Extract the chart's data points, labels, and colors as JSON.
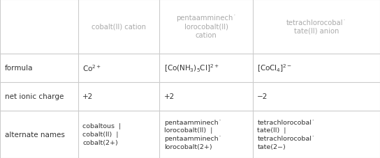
{
  "figsize": [
    5.44,
    2.28
  ],
  "dpi": 100,
  "background_color": "#ffffff",
  "border_color": "#cccccc",
  "header_text_color": "#aaaaaa",
  "cell_text_color": "#333333",
  "col_labels": [
    "cobalt(II) cation",
    "pentaamminech˙\nlorocobalt(II)\ncation",
    "tetrachlorocobal˙\ntate(II) anion"
  ],
  "row_labels": [
    "formula",
    "net ionic charge",
    "alternate names"
  ],
  "formula_row": [
    "Co$^{2+}$",
    "[Co(NH$_3$)$_5$Cl]$^{2+}$",
    "[CoCl$_4$]$^{2-}$"
  ],
  "charge_row": [
    "+2",
    "+2",
    "−2"
  ],
  "names_row": [
    "cobaltous  |\ncobalt(II)  |\ncobalt(2+)",
    "pentaamminech˙\nlorocobalt(II)  |\npentaamminech˙\nlorocobalt(2+)",
    "tetrachlorocobal˙\ntate(II)  |\ntetrachlorocobal˙\ntate(2−)"
  ]
}
